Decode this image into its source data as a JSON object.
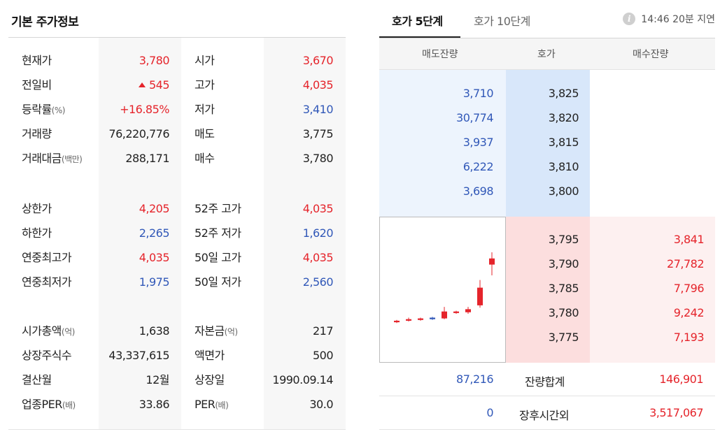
{
  "basic": {
    "title": "기본 주가정보",
    "groups": [
      [
        {
          "l1": "현재가",
          "l1s": "",
          "v1": "3,780",
          "c1": "red",
          "up1": false,
          "l2": "시가",
          "l2s": "",
          "v2": "3,670",
          "c2": "red"
        },
        {
          "l1": "전일비",
          "l1s": "",
          "v1": "545",
          "c1": "red",
          "up1": true,
          "l2": "고가",
          "l2s": "",
          "v2": "4,035",
          "c2": "red"
        },
        {
          "l1": "등락률",
          "l1s": "(%)",
          "v1": "+16.85%",
          "c1": "red",
          "up1": false,
          "l2": "저가",
          "l2s": "",
          "v2": "3,410",
          "c2": "blue"
        },
        {
          "l1": "거래량",
          "l1s": "",
          "v1": "76,220,776",
          "c1": "",
          "up1": false,
          "l2": "매도",
          "l2s": "",
          "v2": "3,775",
          "c2": ""
        },
        {
          "l1": "거래대금",
          "l1s": "(백만)",
          "v1": "288,171",
          "c1": "",
          "up1": false,
          "l2": "매수",
          "l2s": "",
          "v2": "3,780",
          "c2": ""
        }
      ],
      [
        {
          "l1": "상한가",
          "l1s": "",
          "v1": "4,205",
          "c1": "red",
          "up1": false,
          "l2": "52주 고가",
          "l2s": "",
          "v2": "4,035",
          "c2": "red"
        },
        {
          "l1": "하한가",
          "l1s": "",
          "v1": "2,265",
          "c1": "blue",
          "up1": false,
          "l2": "52주 저가",
          "l2s": "",
          "v2": "1,620",
          "c2": "blue"
        },
        {
          "l1": "연중최고가",
          "l1s": "",
          "v1": "4,035",
          "c1": "red",
          "up1": false,
          "l2": "50일 고가",
          "l2s": "",
          "v2": "4,035",
          "c2": "red"
        },
        {
          "l1": "연중최저가",
          "l1s": "",
          "v1": "1,975",
          "c1": "blue",
          "up1": false,
          "l2": "50일 저가",
          "l2s": "",
          "v2": "2,560",
          "c2": "blue"
        }
      ],
      [
        {
          "l1": "시가총액",
          "l1s": "(억)",
          "v1": "1,638",
          "c1": "",
          "up1": false,
          "l2": "자본금",
          "l2s": "(억)",
          "v2": "217",
          "c2": ""
        },
        {
          "l1": "상장주식수",
          "l1s": "",
          "v1": "43,337,615",
          "c1": "",
          "up1": false,
          "l2": "액면가",
          "l2s": "",
          "v2": "500",
          "c2": ""
        },
        {
          "l1": "결산월",
          "l1s": "",
          "v1": "12월",
          "c1": "",
          "up1": false,
          "l2": "상장일",
          "l2s": "",
          "v2": "1990.09.14",
          "c2": ""
        },
        {
          "l1": "업종PER",
          "l1s": "(배)",
          "v1": "33.86",
          "c1": "",
          "up1": false,
          "l2": "PER",
          "l2s": "(배)",
          "v2": "30.0",
          "c2": ""
        }
      ]
    ]
  },
  "orderbook": {
    "tabs": [
      "호가 5단계",
      "호가 10단계"
    ],
    "delay_time": "14:46",
    "delay_text": "20분 지연",
    "headers": [
      "매도잔량",
      "호가",
      "매수잔량"
    ],
    "asks": [
      {
        "qty": "3,710",
        "price": "3,825"
      },
      {
        "qty": "30,774",
        "price": "3,820"
      },
      {
        "qty": "3,937",
        "price": "3,815"
      },
      {
        "qty": "6,222",
        "price": "3,810"
      },
      {
        "qty": "3,698",
        "price": "3,800"
      }
    ],
    "bids": [
      {
        "price": "3,795",
        "qty": "3,841"
      },
      {
        "price": "3,790",
        "qty": "27,782"
      },
      {
        "price": "3,785",
        "qty": "7,796"
      },
      {
        "price": "3,780",
        "qty": "9,242"
      },
      {
        "price": "3,775",
        "qty": "7,193"
      }
    ],
    "total_label": "잔량합계",
    "total_ask": "87,216",
    "total_bid": "146,901",
    "after_label": "장후시간외",
    "after_ask": "0",
    "after_bid": "3,517,067"
  },
  "colors": {
    "up": "#e5242b",
    "down": "#3158b8"
  },
  "mini_chart": {
    "type": "candlestick",
    "candles": [
      {
        "o": 0.09,
        "c": 0.11,
        "h": 0.12,
        "l": 0.08,
        "up": true
      },
      {
        "o": 0.11,
        "c": 0.13,
        "h": 0.15,
        "l": 0.1,
        "up": true
      },
      {
        "o": 0.12,
        "c": 0.14,
        "h": 0.15,
        "l": 0.11,
        "up": true
      },
      {
        "o": 0.15,
        "c": 0.13,
        "h": 0.16,
        "l": 0.12,
        "up": false
      },
      {
        "o": 0.14,
        "c": 0.23,
        "h": 0.29,
        "l": 0.13,
        "up": true
      },
      {
        "o": 0.21,
        "c": 0.23,
        "h": 0.24,
        "l": 0.2,
        "up": true
      },
      {
        "o": 0.22,
        "c": 0.26,
        "h": 0.29,
        "l": 0.2,
        "up": true
      },
      {
        "o": 0.31,
        "c": 0.54,
        "h": 0.64,
        "l": 0.28,
        "up": true
      },
      {
        "o": 0.84,
        "c": 0.92,
        "h": 1.0,
        "l": 0.7,
        "up": true
      }
    ]
  }
}
